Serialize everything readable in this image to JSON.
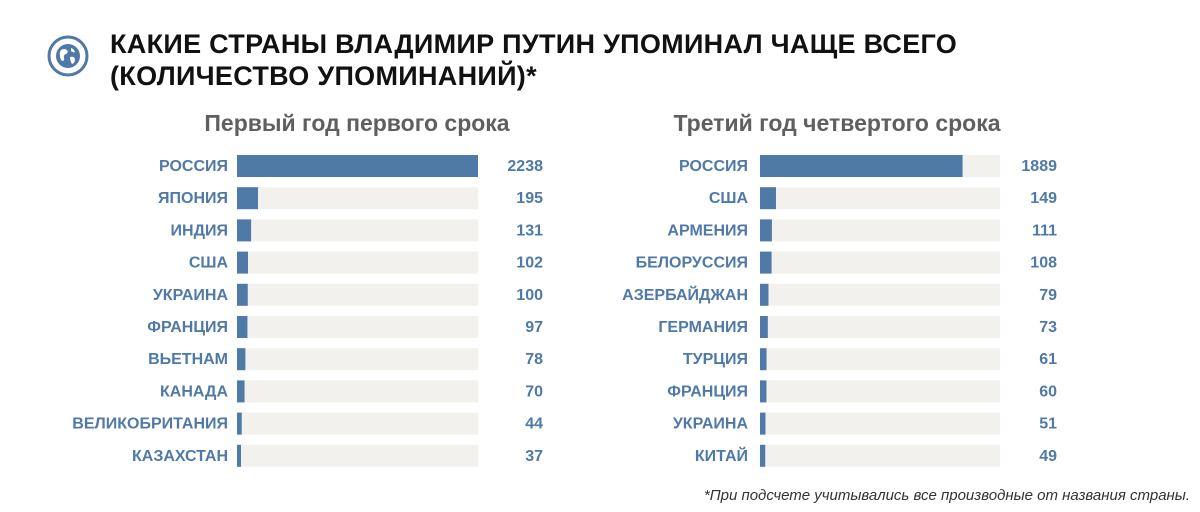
{
  "header": {
    "title_line1": "КАКИЕ СТРАНЫ ВЛАДИМИР ПУТИН УПОМИНАЛ ЧАЩЕ ВСЕГО",
    "title_line2": "(КОЛИЧЕСТВО УПОМИНАНИЙ)*",
    "logo_icon": "globe-icon"
  },
  "colors": {
    "bar": "#4f79a6",
    "track": "#f3f1ed",
    "label": "#4f79a6",
    "logo_ring": "#4f79a6"
  },
  "chart_data": [
    {
      "type": "bar",
      "orientation": "horizontal",
      "title": "Первый год первого срока",
      "categories": [
        "РОССИЯ",
        "ЯПОНИЯ",
        "ИНДИЯ",
        "США",
        "УКРАИНА",
        "ФРАНЦИЯ",
        "ВЬЕТНАМ",
        "КАНАДА",
        "ВЕЛИКОБРИТАНИЯ",
        "КАЗАХСТАН"
      ],
      "values": [
        2238,
        195,
        131,
        102,
        100,
        97,
        78,
        70,
        44,
        37
      ],
      "xlim": [
        0,
        2238
      ]
    },
    {
      "type": "bar",
      "orientation": "horizontal",
      "title": "Третий год четвертого срока",
      "categories": [
        "РОССИЯ",
        "США",
        "АРМЕНИЯ",
        "БЕЛОРУССИЯ",
        "АЗЕРБАЙДЖАН",
        "ГЕРМАНИЯ",
        "ТУРЦИЯ",
        "ФРАНЦИЯ",
        "УКРАИНА",
        "КИТАЙ"
      ],
      "values": [
        1889,
        149,
        111,
        108,
        79,
        73,
        61,
        60,
        51,
        49
      ],
      "xlim": [
        0,
        2238
      ]
    }
  ],
  "footnote": "*При подсчете учитывались все производные от названия страны."
}
